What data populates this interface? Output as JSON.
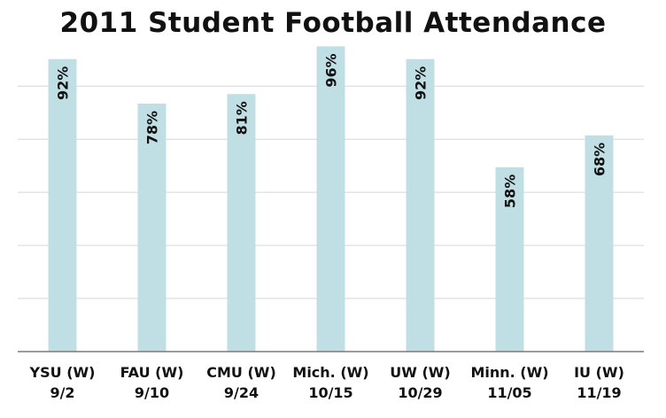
{
  "chart_data": {
    "type": "bar",
    "title": "2011 Student Football Attendance",
    "categories": [
      [
        "YSU (W)",
        "9/2"
      ],
      [
        "FAU (W)",
        "9/10"
      ],
      [
        "CMU (W)",
        "9/24"
      ],
      [
        "Mich. (W)",
        "10/15"
      ],
      [
        "UW (W)",
        "10/29"
      ],
      [
        "Minn. (W)",
        "11/05"
      ],
      [
        "IU (W)",
        "11/19"
      ]
    ],
    "values": [
      92,
      78,
      81,
      96,
      92,
      58,
      68
    ],
    "data_labels": [
      "92%",
      "78%",
      "81%",
      "96%",
      "92%",
      "58%",
      "68%"
    ],
    "xlabel": "",
    "ylabel": "",
    "ylim": [
      0,
      100
    ],
    "yticks_shown": false,
    "grid": true,
    "legend": "none",
    "colors": {
      "bar": "#bfdfe5",
      "grid": "#d6d6d6",
      "axis": "#7a7a7a",
      "text": "#111111"
    }
  }
}
